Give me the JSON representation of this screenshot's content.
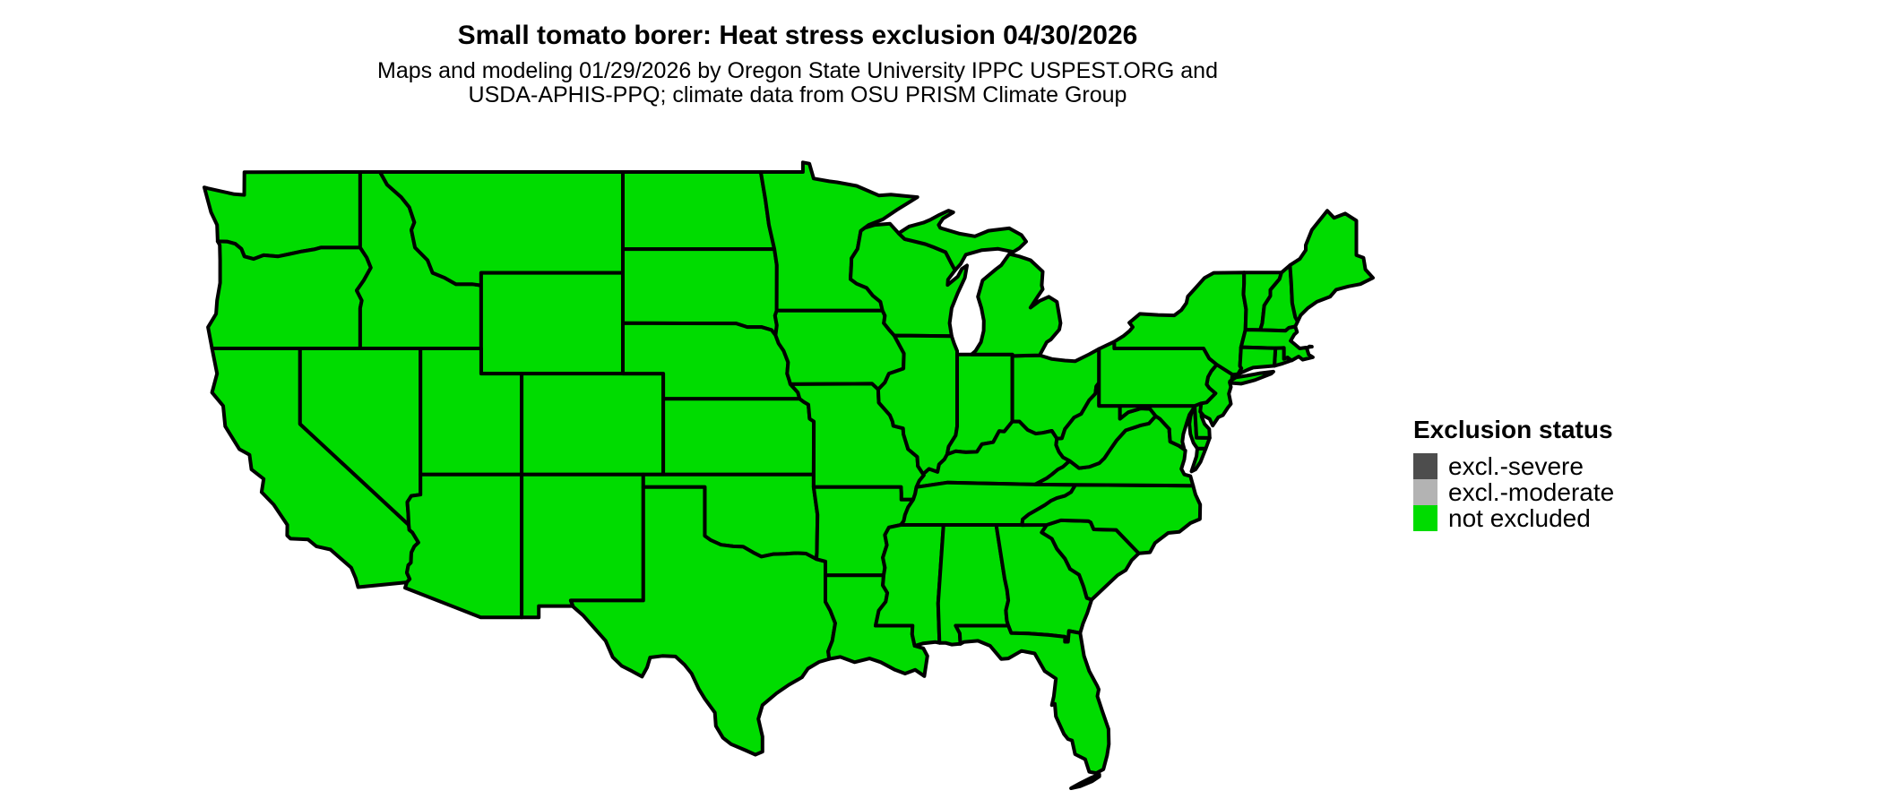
{
  "page": {
    "background_color": "#FFFFFF"
  },
  "header": {
    "title": "Small tomato borer: Heat stress exclusion 04/30/2026",
    "subtitle_line1": "Maps and modeling 01/29/2026 by Oregon State University IPPC USPEST.ORG and",
    "subtitle_line2": "USDA-APHIS-PPQ; climate data from OSU PRISM Climate Group"
  },
  "legend": {
    "title": "Exclusion status",
    "items": [
      {
        "label": "excl.-severe",
        "color": "#4D4D4D"
      },
      {
        "label": "excl.-moderate",
        "color": "#B3B3B3"
      },
      {
        "label": "not excluded",
        "color": "#00DC00"
      }
    ]
  },
  "map": {
    "region": "Contiguous United States",
    "fill_color": "#00DC00",
    "border_color": "#000000",
    "all_states_status": "not excluded"
  }
}
